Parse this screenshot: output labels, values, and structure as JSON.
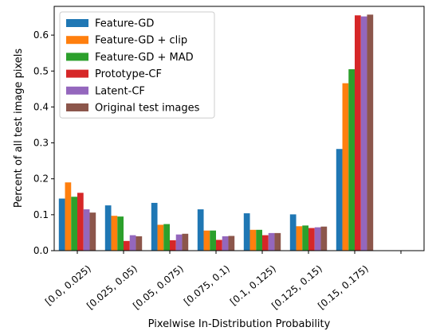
{
  "chart_data": {
    "type": "bar",
    "title": "",
    "xlabel": "Pixelwise In-Distribution Probability",
    "ylabel": "Percent of all test image pixels",
    "categories": [
      "[0.0, 0.025)",
      "[0.025, 0.05)",
      "[0.05, 0.075)",
      "[0.075, 0.1)",
      "[0.1, 0.125)",
      "[0.125, 0.15)",
      "[0.15, 0.175)"
    ],
    "ylim": [
      0,
      0.68
    ],
    "yticks": [
      "0.0",
      "0.1",
      "0.2",
      "0.3",
      "0.4",
      "0.5",
      "0.6"
    ],
    "legend_position": "top-left",
    "grid": false,
    "series": [
      {
        "name": "Feature-GD",
        "color": "#1f77b4",
        "values": [
          0.145,
          0.126,
          0.133,
          0.115,
          0.104,
          0.101,
          0.283
        ]
      },
      {
        "name": "Feature-GD + clip",
        "color": "#ff7f0e",
        "values": [
          0.19,
          0.097,
          0.072,
          0.056,
          0.058,
          0.068,
          0.466
        ]
      },
      {
        "name": "Feature-GD + MAD",
        "color": "#2ca02c",
        "values": [
          0.15,
          0.095,
          0.074,
          0.056,
          0.058,
          0.07,
          0.505
        ]
      },
      {
        "name": "Prototype-CF",
        "color": "#d62728",
        "values": [
          0.161,
          0.027,
          0.029,
          0.03,
          0.043,
          0.063,
          0.655
        ]
      },
      {
        "name": "Latent-CF",
        "color": "#9467bd",
        "values": [
          0.115,
          0.043,
          0.045,
          0.04,
          0.049,
          0.065,
          0.652
        ]
      },
      {
        "name": "Original test images",
        "color": "#8c564b",
        "values": [
          0.106,
          0.04,
          0.047,
          0.041,
          0.049,
          0.067,
          0.657
        ]
      }
    ]
  }
}
